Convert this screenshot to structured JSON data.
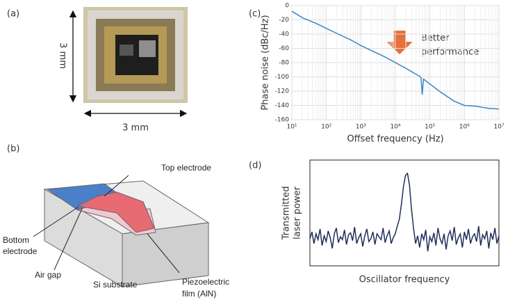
{
  "panels": [
    "(a)",
    "(b)",
    "(c)",
    "(d)"
  ],
  "photo": {
    "height_label": "3 mm",
    "width_label": "3 mm"
  },
  "diagram": {
    "top_electrode": "Top electrode",
    "bottom_electrode": [
      "Bottom",
      "electrode"
    ],
    "air_gap": "Air gap",
    "substrate": "Si substrate",
    "film": [
      "Piezoelectric",
      "film (AlN)"
    ]
  },
  "chart_data": [
    {
      "type": "line",
      "xlabel": "Offset frequency (Hz)",
      "ylabel": "Phase noise (dBc/Hz)",
      "annotation": [
        "Better",
        "performance"
      ],
      "log_x": true,
      "grid": true,
      "x": [
        10,
        20,
        50,
        100,
        200,
        500,
        1000,
        2000,
        5000,
        10000,
        20000,
        50000,
        55000,
        60000,
        65000,
        100000,
        200000,
        500000,
        1000000,
        2000000,
        5000000,
        10000000
      ],
      "series": [
        {
          "color": "#3b86c4",
          "values": [
            -8,
            -17,
            -25,
            -32,
            -39,
            -48,
            -56,
            -63,
            -72,
            -80,
            -88,
            -99,
            -101,
            -125,
            -103,
            -110,
            -121,
            -134,
            -140,
            -141,
            -144,
            -145
          ]
        }
      ],
      "xlim": [
        10,
        10000000
      ],
      "xticks": [
        {
          "value": 10,
          "label": "10¹"
        },
        {
          "value": 100,
          "label": "10²"
        },
        {
          "value": 1000,
          "label": "10³"
        },
        {
          "value": 10000,
          "label": "10⁴"
        },
        {
          "value": 100000,
          "label": "10⁵"
        },
        {
          "value": 1000000,
          "label": "10⁶"
        },
        {
          "value": 10000000,
          "label": "10⁷"
        }
      ],
      "ylim": [
        -160,
        0
      ],
      "yticks": [
        -160,
        -140,
        -120,
        -100,
        -80,
        -60,
        -40,
        -20,
        0
      ]
    },
    {
      "type": "line",
      "xlabel": "Oscillator frequency",
      "ylabel": [
        "Transmitted",
        "laser power"
      ],
      "ylim": [
        0,
        1
      ],
      "series": [
        {
          "color": "#1f2d5a",
          "values": [
            0.25,
            0.32,
            0.2,
            0.3,
            0.24,
            0.35,
            0.18,
            0.28,
            0.22,
            0.33,
            0.26,
            0.15,
            0.3,
            0.36,
            0.21,
            0.27,
            0.24,
            0.34,
            0.19,
            0.29,
            0.31,
            0.23,
            0.37,
            0.2,
            0.26,
            0.3,
            0.17,
            0.28,
            0.35,
            0.22,
            0.25,
            0.32,
            0.19,
            0.3,
            0.27,
            0.24,
            0.36,
            0.21,
            0.28,
            0.33,
            0.2,
            0.26,
            0.3,
            0.38,
            0.45,
            0.6,
            0.78,
            0.9,
            0.92,
            0.8,
            0.55,
            0.35,
            0.2,
            0.28,
            0.16,
            0.3,
            0.24,
            0.34,
            0.12,
            0.27,
            0.22,
            0.31,
            0.18,
            0.36,
            0.25,
            0.2,
            0.3,
            0.14,
            0.28,
            0.33,
            0.23,
            0.37,
            0.19,
            0.26,
            0.3,
            0.16,
            0.32,
            0.24,
            0.35,
            0.2,
            0.27,
            0.3,
            0.22,
            0.38,
            0.18,
            0.29,
            0.25,
            0.33,
            0.15,
            0.31,
            0.24,
            0.36,
            0.2,
            0.28
          ]
        }
      ]
    }
  ]
}
